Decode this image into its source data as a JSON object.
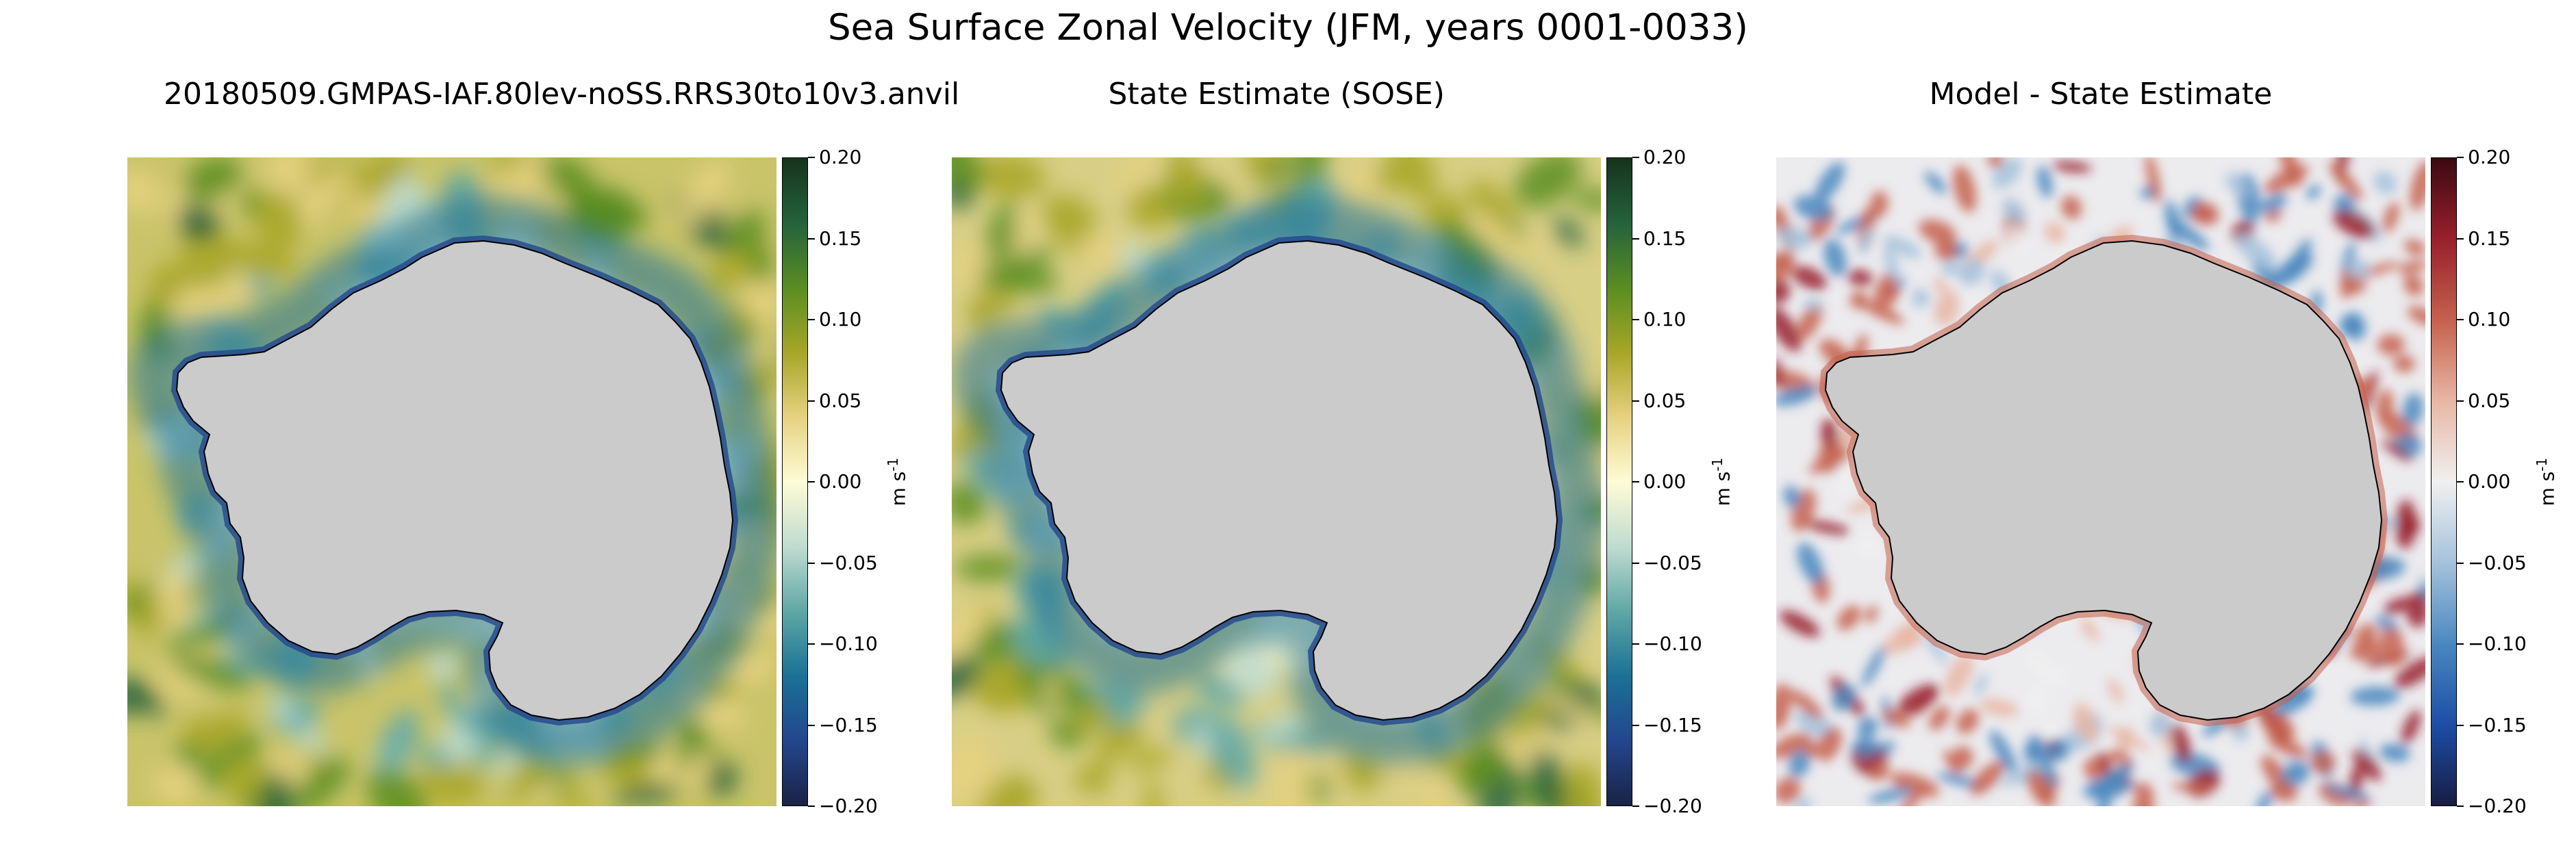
{
  "chart_data": {
    "type": "heatmap",
    "title": "Sea Surface Zonal Velocity (JFM, years 0001-0033)",
    "panels": [
      {
        "title": "20180509.GMPAS-IAF.80lev-noSS.RRS30to10v3.anvil",
        "colormap": "delta",
        "clim": [
          -0.2,
          0.2
        ],
        "colorbar_label": "m s",
        "colorbar_label_sup": "-1",
        "colorbar_ticks": [
          "0.20",
          "0.15",
          "0.10",
          "0.05",
          "0.00",
          "−0.05",
          "−0.10",
          "−0.15",
          "−0.20"
        ]
      },
      {
        "title": "State Estimate (SOSE)",
        "colormap": "delta",
        "clim": [
          -0.2,
          0.2
        ],
        "colorbar_label": "m s",
        "colorbar_label_sup": "-1",
        "colorbar_ticks": [
          "0.20",
          "0.15",
          "0.10",
          "0.05",
          "0.00",
          "−0.05",
          "−0.10",
          "−0.15",
          "−0.20"
        ]
      },
      {
        "title": "Model - State Estimate",
        "colormap": "balance",
        "clim": [
          -0.2,
          0.2
        ],
        "colorbar_label": "m s",
        "colorbar_label_sup": "-1",
        "colorbar_ticks": [
          "0.20",
          "0.15",
          "0.10",
          "0.05",
          "0.00",
          "−0.05",
          "−0.10",
          "−0.15",
          "−0.20"
        ]
      }
    ],
    "colors": {
      "land": "#cbcbcb",
      "delta_stops": [
        "#1b2245",
        "#23468d",
        "#1b7196",
        "#5fa7a6",
        "#bfdcd0",
        "#fefcd6",
        "#e6d181",
        "#a7a627",
        "#5a8d22",
        "#24623c",
        "#16331d"
      ],
      "balance_stops": [
        "#181c43",
        "#1c4ea6",
        "#4b88c0",
        "#a5c2dc",
        "#f0f0f0",
        "#e8b6a5",
        "#c5614d",
        "#98202d",
        "#3c0911"
      ]
    }
  }
}
